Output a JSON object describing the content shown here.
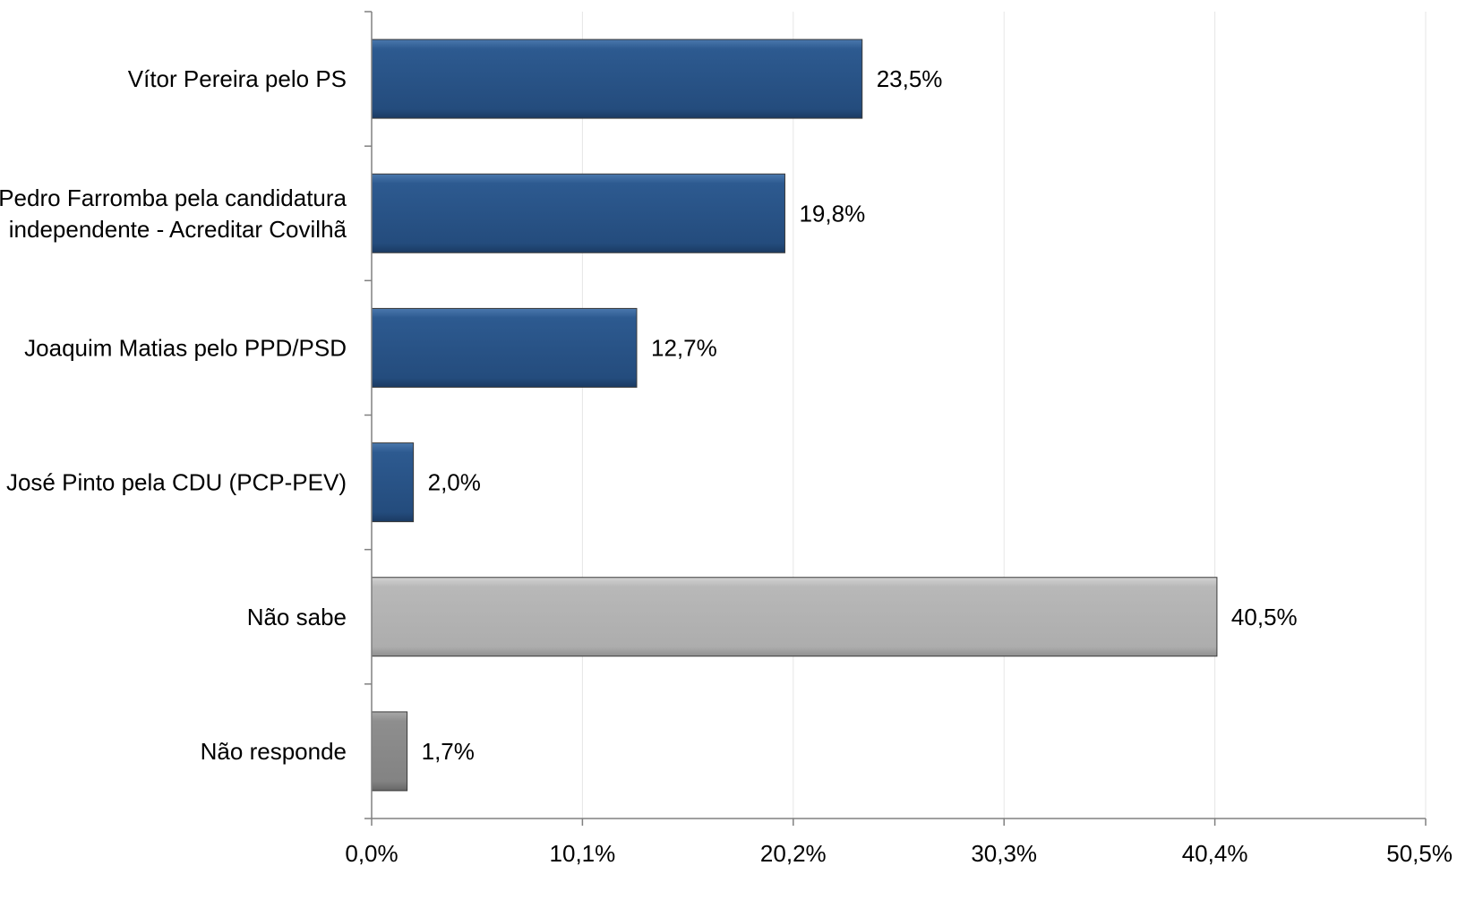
{
  "chart_data": {
    "type": "bar",
    "orientation": "horizontal",
    "categories": [
      "Vítor Pereira pelo PS",
      "Pedro Farromba pela candidatura independente - Acreditar Covilhã",
      "Joaquim Matias pelo PPD/PSD",
      "José Pinto pela CDU (PCP-PEV)",
      "Não sabe",
      "Não responde"
    ],
    "category_lines": [
      [
        "Vítor Pereira pelo PS"
      ],
      [
        "Pedro Farromba pela candidatura",
        "independente - Acreditar Covilhã"
      ],
      [
        "Joaquim Matias pelo PPD/PSD"
      ],
      [
        "José Pinto pela CDU (PCP-PEV)"
      ],
      [
        "Não sabe"
      ],
      [
        "Não responde"
      ]
    ],
    "values": [
      23.5,
      19.8,
      12.7,
      2.0,
      40.5,
      1.7
    ],
    "data_labels": [
      "23,5%",
      "19,8%",
      "12,7%",
      "2,0%",
      "40,5%",
      "1,7%"
    ],
    "bar_colors": [
      "#2a5488",
      "#2a5488",
      "#2a5488",
      "#2a5488",
      "#b3b3b3",
      "#8a8a8a"
    ],
    "xlim": [
      0,
      50.5
    ],
    "x_ticks": [
      0,
      10.1,
      20.2,
      30.3,
      40.4,
      50.5
    ],
    "x_tick_labels": [
      "0,0%",
      "10,1%",
      "20,2%",
      "30,3%",
      "40,4%",
      "50,5%"
    ],
    "grid": true,
    "title": "",
    "xlabel": "",
    "ylabel": ""
  }
}
